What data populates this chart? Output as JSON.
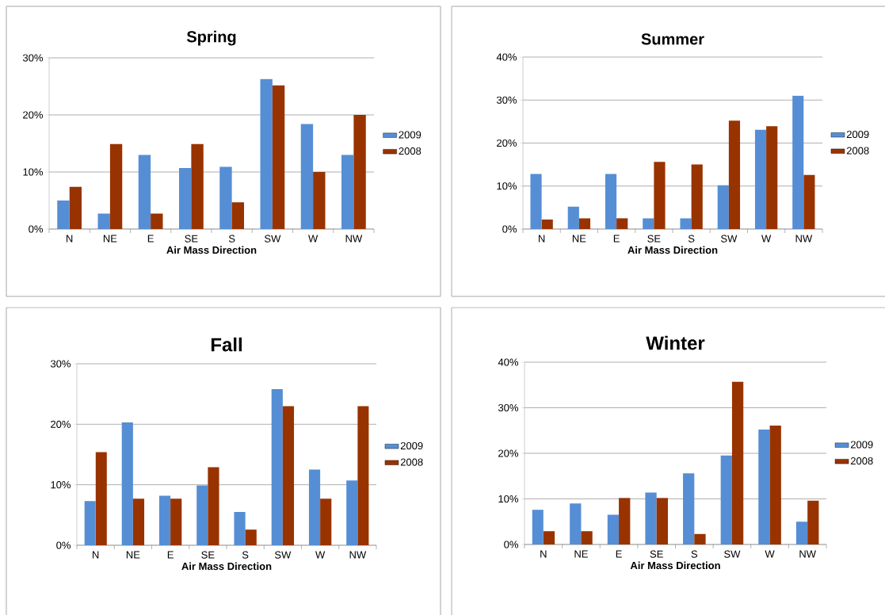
{
  "chart_data": [
    {
      "type": "bar",
      "title": "Spring",
      "xlabel": "Air Mass Direction",
      "categories": [
        "N",
        "NE",
        "E",
        "SE",
        "S",
        "SW",
        "W",
        "NW"
      ],
      "series": [
        {
          "name": "2009",
          "color": "#558ed5",
          "values": [
            5.0,
            2.7,
            13.0,
            10.7,
            10.9,
            26.3,
            18.4,
            13.0
          ]
        },
        {
          "name": "2008",
          "color": "#983300",
          "values": [
            7.4,
            14.9,
            2.7,
            14.9,
            4.7,
            25.2,
            10.0,
            20.0
          ]
        }
      ],
      "ylim": [
        0,
        30
      ],
      "yticks": [
        {
          "value": 0,
          "label": "0%"
        },
        {
          "value": 10,
          "label": "10%"
        },
        {
          "value": 20,
          "label": "20%"
        },
        {
          "value": 30,
          "label": "30%"
        }
      ],
      "grid": "y",
      "legend": "right"
    },
    {
      "type": "bar",
      "title": "Summer",
      "xlabel": "Air Mass Direction",
      "categories": [
        "N",
        "NE",
        "E",
        "SE",
        "S",
        "SW",
        "W",
        "NW"
      ],
      "series": [
        {
          "name": "2009",
          "color": "#558ed5",
          "values": [
            12.8,
            5.2,
            12.8,
            2.5,
            2.5,
            10.2,
            23.1,
            31.0
          ]
        },
        {
          "name": "2008",
          "color": "#983300",
          "values": [
            2.2,
            2.5,
            2.5,
            15.6,
            15.0,
            25.2,
            23.9,
            12.6
          ]
        }
      ],
      "ylim": [
        0,
        40
      ],
      "yticks": [
        {
          "value": 0,
          "label": "0%"
        },
        {
          "value": 10,
          "label": "10%"
        },
        {
          "value": 20,
          "label": "20%"
        },
        {
          "value": 30,
          "label": "30%"
        },
        {
          "value": 40,
          "label": "40%"
        }
      ],
      "grid": "y",
      "legend": "right"
    },
    {
      "type": "bar",
      "title": "Fall",
      "xlabel": "Air Mass Direction",
      "categories": [
        "N",
        "NE",
        "E",
        "SE",
        "S",
        "SW",
        "W",
        "NW"
      ],
      "series": [
        {
          "name": "2009",
          "color": "#558ed5",
          "values": [
            7.3,
            20.3,
            8.2,
            9.9,
            5.5,
            25.8,
            12.5,
            10.7
          ]
        },
        {
          "name": "2008",
          "color": "#983300",
          "values": [
            15.4,
            7.7,
            7.7,
            12.9,
            2.6,
            23.0,
            7.7,
            23.0
          ]
        }
      ],
      "ylim": [
        0,
        30
      ],
      "yticks": [
        {
          "value": 0,
          "label": "0%"
        },
        {
          "value": 10,
          "label": "10%"
        },
        {
          "value": 20,
          "label": "20%"
        },
        {
          "value": 30,
          "label": "30%"
        }
      ],
      "grid": "y",
      "legend": "right"
    },
    {
      "type": "bar",
      "title": "Winter",
      "xlabel": "Air Mass Direction",
      "categories": [
        "N",
        "NE",
        "E",
        "SE",
        "S",
        "SW",
        "W",
        "NW"
      ],
      "series": [
        {
          "name": "2009",
          "color": "#558ed5",
          "values": [
            7.6,
            9.0,
            6.5,
            11.4,
            15.6,
            19.5,
            25.2,
            5.0
          ]
        },
        {
          "name": "2008",
          "color": "#983300",
          "values": [
            2.9,
            2.9,
            10.2,
            10.2,
            2.3,
            35.7,
            26.1,
            9.6
          ]
        }
      ],
      "ylim": [
        0,
        40
      ],
      "yticks": [
        {
          "value": 0,
          "label": "0%"
        },
        {
          "value": 10,
          "label": "10%"
        },
        {
          "value": 20,
          "label": "20%"
        },
        {
          "value": 30,
          "label": "30%"
        },
        {
          "value": 40,
          "label": "40%"
        }
      ],
      "grid": "y",
      "legend": "right"
    }
  ]
}
